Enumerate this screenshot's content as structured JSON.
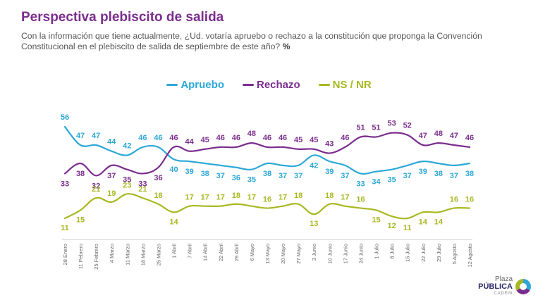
{
  "header": {
    "title": "Perspectiva plebiscito de salida",
    "subtitle": "Con la información que tiene actualmente, ¿Ud. votaría apruebo o rechazo a la constitución que proponga la Convención Constitucional en el plebiscito de salida de septiembre de este año?",
    "unit": "%"
  },
  "logo": {
    "line1": "Plaza",
    "line2": "PÚBLICA",
    "line3": "CADEM"
  },
  "chart_data": {
    "type": "line",
    "title": "Perspectiva plebiscito de salida",
    "xlabel": "",
    "ylabel": "",
    "ylim": [
      0,
      60
    ],
    "grid": false,
    "legend": "top-center",
    "x": [
      "28 Enero",
      "11 Febrero",
      "25 Febrero",
      "4 Marzo",
      "11 Marzo",
      "18 Marzo",
      "25 Marzo",
      "1 Abril",
      "7 Abril",
      "14 Abril",
      "22 Abril",
      "29 Abril",
      "6 Mayo",
      "13 Mayo",
      "20 Mayo",
      "27 Mayo",
      "3 Junio",
      "10 Junio",
      "17 Junio",
      "24 Junio",
      "1 Julio",
      "8 Julio",
      "15 Julio",
      "22 Julio",
      "29 Julio",
      "5 Agosto",
      "12 Agosto"
    ],
    "series": [
      {
        "name": "Apruebo",
        "color": "#2ca8d8",
        "label_pos": "above-early-below-late",
        "values": [
          56,
          47,
          47,
          44,
          42,
          46,
          46,
          40,
          39,
          38,
          37,
          36,
          35,
          38,
          37,
          37,
          42,
          39,
          37,
          33,
          34,
          35,
          37,
          39,
          38,
          37,
          38
        ]
      },
      {
        "name": "Rechazo",
        "color": "#7b2d8e",
        "values": [
          33,
          38,
          32,
          37,
          35,
          33,
          36,
          46,
          44,
          45,
          46,
          46,
          48,
          46,
          46,
          45,
          45,
          43,
          46,
          51,
          51,
          53,
          52,
          47,
          48,
          47,
          46
        ]
      },
      {
        "name": "NS / NR",
        "color": "#a8b820",
        "values": [
          11,
          15,
          21,
          19,
          23,
          21,
          18,
          14,
          17,
          17,
          17,
          18,
          17,
          16,
          17,
          18,
          13,
          18,
          17,
          16,
          15,
          12,
          11,
          14,
          14,
          16,
          16
        ]
      }
    ]
  }
}
